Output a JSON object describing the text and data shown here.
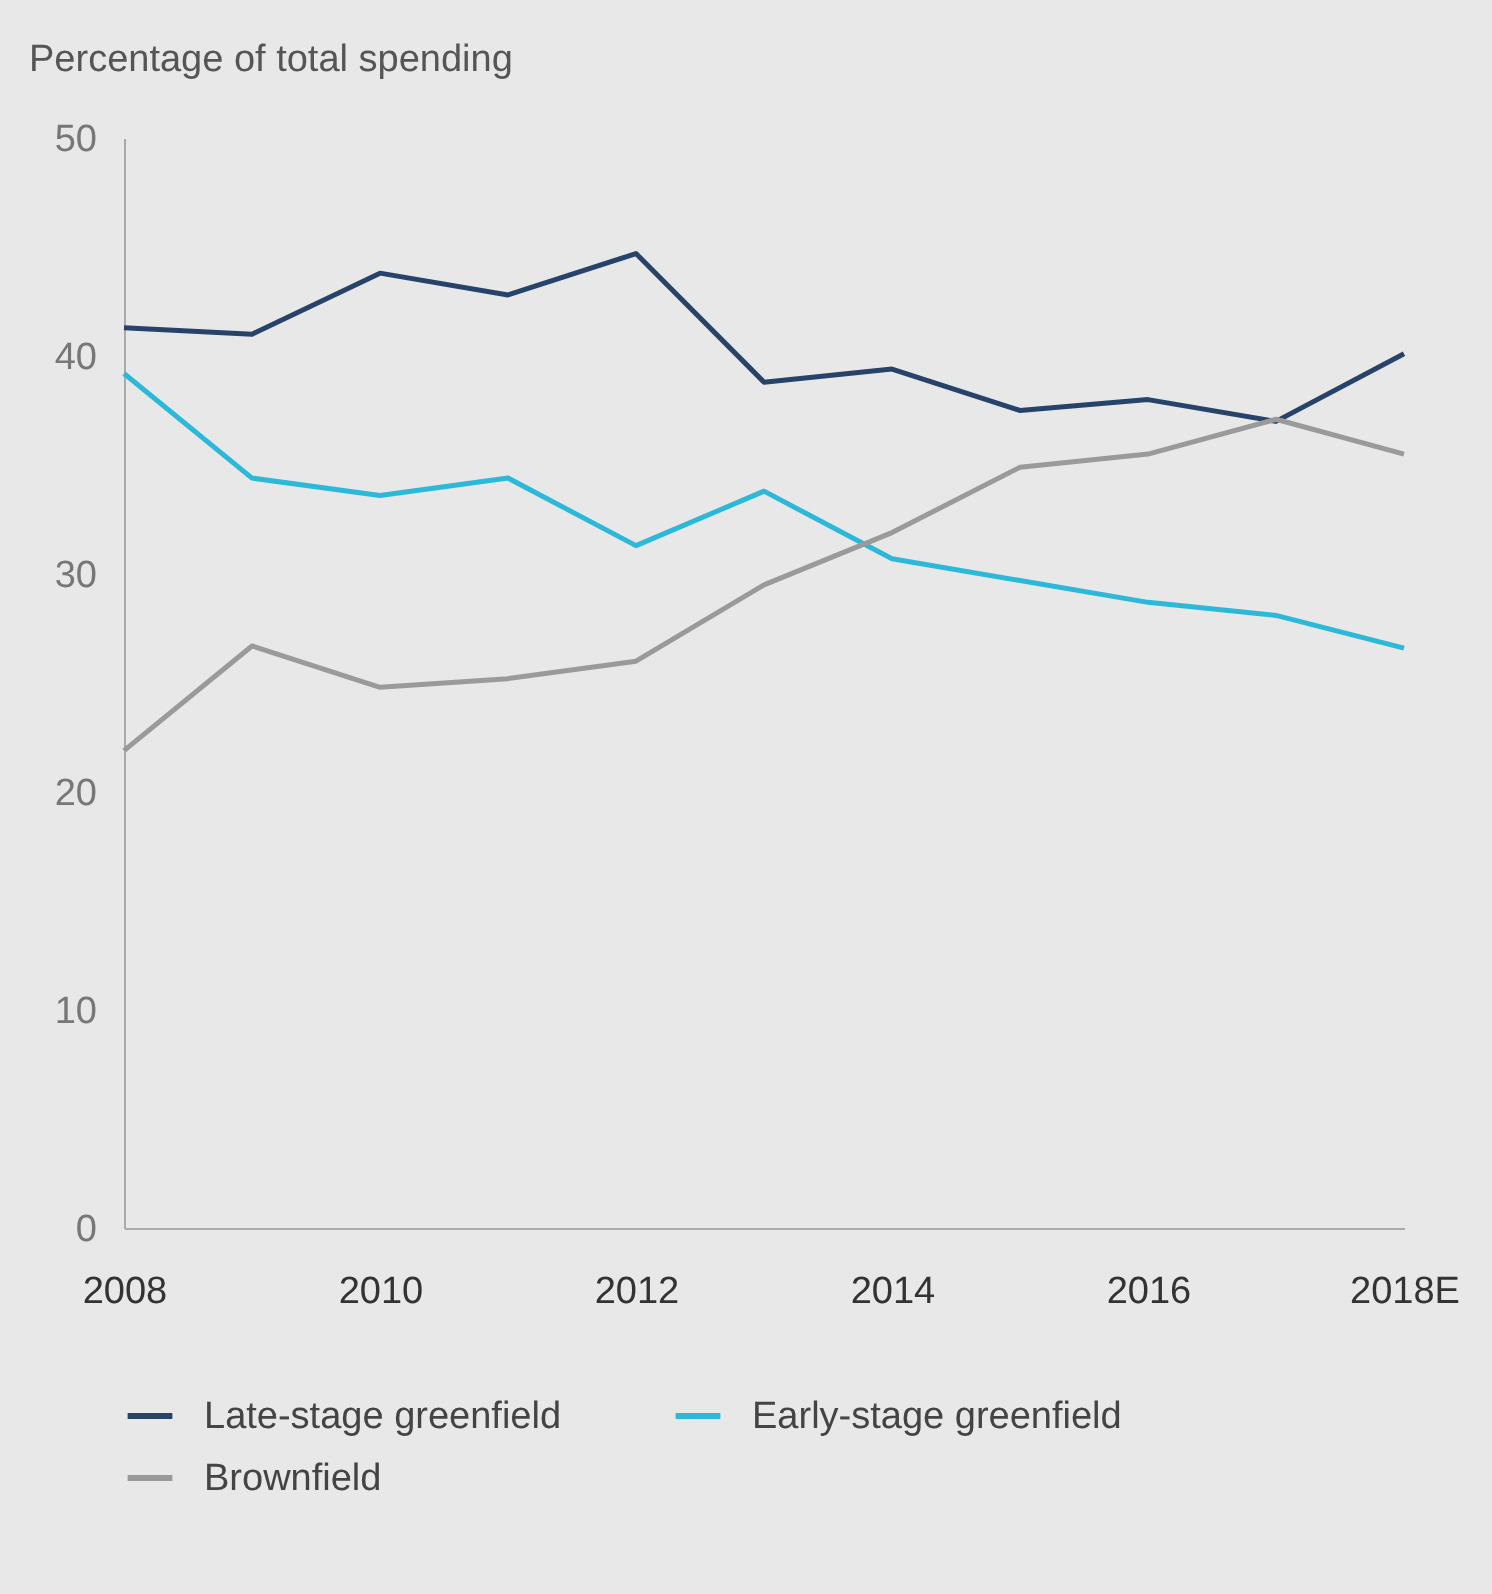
{
  "chart_data": {
    "type": "line",
    "ylabel": "Percentage of total spending",
    "categories": [
      "2008",
      null,
      "2010",
      null,
      "2012",
      null,
      "2014",
      null,
      "2016",
      null,
      "2018E"
    ],
    "series": [
      {
        "name": "Late-stage greenfield",
        "color": "#27436a",
        "values": [
          41.3,
          41.0,
          43.8,
          42.8,
          44.7,
          38.8,
          39.4,
          37.5,
          38.0,
          37.0,
          40.1
        ]
      },
      {
        "name": "Early-stage greenfield",
        "color": "#2cb9d9",
        "values": [
          39.2,
          34.4,
          33.6,
          34.4,
          31.3,
          33.8,
          30.7,
          29.7,
          28.7,
          28.1,
          26.6
        ]
      },
      {
        "name": "Brownfield",
        "color": "#9a9a9a",
        "values": [
          21.9,
          26.7,
          24.8,
          25.2,
          26.0,
          29.5,
          31.9,
          34.9,
          35.5,
          37.1,
          35.5
        ]
      }
    ],
    "ylim": [
      0,
      50
    ],
    "yticks": [
      0,
      10,
      20,
      30,
      40,
      50
    ],
    "legend": "bottom",
    "marker": "none",
    "line_style": "solid"
  }
}
